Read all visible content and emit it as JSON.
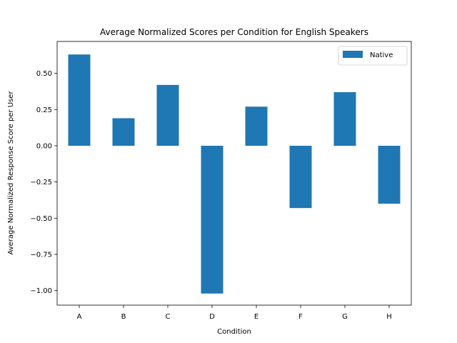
{
  "chart_data": {
    "type": "bar",
    "title": "Average Normalized Scores per Condition for English Speakers",
    "xlabel": "Condition",
    "ylabel": "Average Normalized Response Score per User",
    "categories": [
      "A",
      "B",
      "C",
      "D",
      "E",
      "F",
      "G",
      "H"
    ],
    "series": [
      {
        "name": "Native",
        "color": "#1f77b4",
        "values": [
          0.63,
          0.19,
          0.42,
          -1.02,
          0.27,
          -0.43,
          0.37,
          -0.4
        ]
      }
    ],
    "ylim": [
      -1.1,
      0.72
    ],
    "yticks": [
      0.5,
      0.25,
      0.0,
      -0.25,
      -0.5,
      -0.75,
      -1.0
    ],
    "ytick_labels": [
      "0.50",
      "0.25",
      "0.00",
      "−0.25",
      "−0.50",
      "−0.75",
      "−1.00"
    ],
    "grid": false,
    "legend_position": "top-right"
  }
}
